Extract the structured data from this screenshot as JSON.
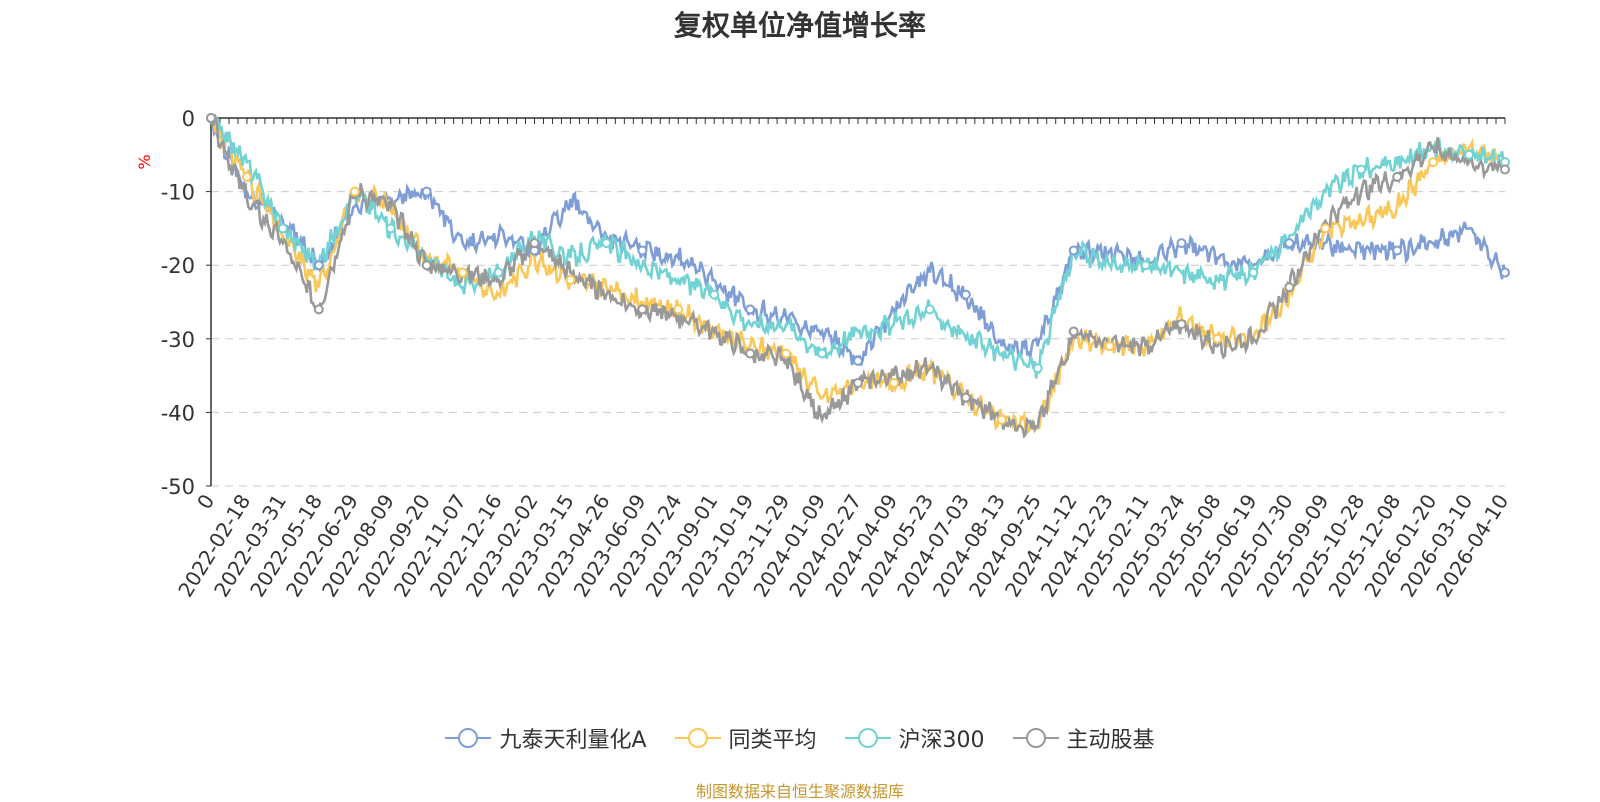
{
  "chart_data": {
    "type": "line",
    "title": "复权单位净值增长率",
    "ylabel": "%",
    "ylim": [
      -50,
      0
    ],
    "yticks": [
      0,
      -10,
      -20,
      -30,
      -40,
      -50
    ],
    "x_tick_labels": [
      "0",
      "2022-02-18",
      "2022-03-31",
      "2022-05-18",
      "2022-06-29",
      "2022-08-09",
      "2022-09-20",
      "2022-11-07",
      "2022-12-16",
      "2023-02-02",
      "2023-03-15",
      "2023-04-26",
      "2023-06-09",
      "2023-07-24",
      "2023-09-01",
      "2023-10-19",
      "2023-11-29",
      "2024-01-09",
      "2024-02-27",
      "2024-04-09",
      "2024-05-23",
      "2024-07-03",
      "2024-08-13",
      "2024-09-25",
      "2024-11-12",
      "2024-12-23",
      "2025-02-11",
      "2025-03-24",
      "2025-05-08",
      "2025-06-19",
      "2025-07-30",
      "2025-09-09",
      "2025-10-28",
      "2025-12-08",
      "2026-01-20",
      "2026-03-10",
      "2026-04-10"
    ],
    "grid": true,
    "legend_position": "bottom-center",
    "series": [
      {
        "name": "九泰天利量化A",
        "color": "#7f9ed6",
        "values": [
          0,
          -10,
          -14,
          -20,
          -12,
          -11,
          -10,
          -17,
          -16,
          -18,
          -11,
          -16,
          -18,
          -19,
          -22,
          -26,
          -27,
          -29,
          -33,
          -26,
          -21,
          -24,
          -31,
          -31,
          -18,
          -18,
          -20,
          -17,
          -19,
          -20,
          -17,
          -17,
          -18,
          -18,
          -17,
          -15,
          -21
        ]
      },
      {
        "name": "同类平均",
        "color": "#fac858",
        "values": [
          0,
          -8,
          -16,
          -23,
          -10,
          -12,
          -19,
          -21,
          -24,
          -19,
          -22,
          -23,
          -25,
          -26,
          -29,
          -31,
          -32,
          -38,
          -36,
          -36,
          -34,
          -38,
          -41,
          -42,
          -30,
          -31,
          -31,
          -27,
          -30,
          -30,
          -24,
          -15,
          -14,
          -12,
          -6,
          -4,
          -6
        ]
      },
      {
        "name": "沪深300",
        "color": "#73d3d4",
        "values": [
          0,
          -6,
          -15,
          -20,
          -10,
          -15,
          -19,
          -23,
          -21,
          -16,
          -19,
          -17,
          -20,
          -22,
          -24,
          -28,
          -28,
          -32,
          -29,
          -28,
          -26,
          -30,
          -32,
          -34,
          -18,
          -20,
          -20,
          -21,
          -22,
          -21,
          -16,
          -10,
          -7,
          -6,
          -4,
          -5,
          -6
        ]
      },
      {
        "name": "主动股基",
        "color": "#999999",
        "values": [
          0,
          -11,
          -17,
          -26,
          -10,
          -12,
          -20,
          -21,
          -22,
          -17,
          -21,
          -24,
          -26,
          -27,
          -29,
          -32,
          -33,
          -41,
          -36,
          -35,
          -34,
          -38,
          -41,
          -42,
          -29,
          -31,
          -31,
          -28,
          -31,
          -30,
          -23,
          -14,
          -10,
          -8,
          -4,
          -6,
          -7
        ]
      }
    ]
  },
  "source_note": {
    "text": "制图数据来自恒生聚源数据库",
    "color": "#c8962e"
  }
}
